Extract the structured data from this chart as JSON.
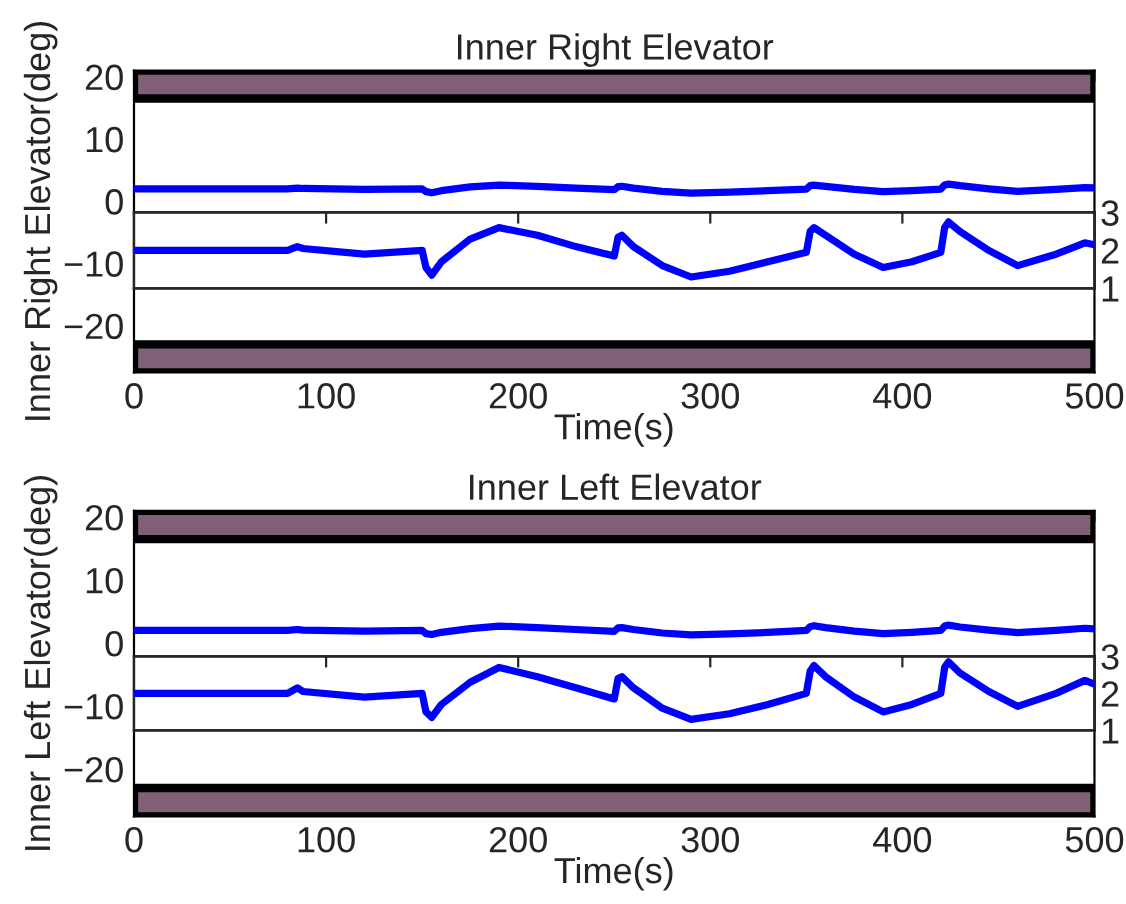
{
  "chart_data": [
    {
      "type": "line",
      "title": "Inner Right Elevator",
      "xlabel": "Time(s)",
      "ylabel": "Inner Right Elevator(deg)",
      "xlim": [
        0,
        500
      ],
      "xticks": [
        0,
        100,
        200,
        300,
        400,
        500
      ],
      "ylim": [
        -27.5,
        21
      ],
      "yticks": [
        -20,
        -10,
        0,
        10,
        20
      ],
      "x": [
        0,
        80,
        85,
        88,
        120,
        150,
        152,
        155,
        160,
        175,
        190,
        210,
        230,
        250,
        252,
        254,
        260,
        275,
        290,
        310,
        330,
        350,
        352,
        354,
        360,
        375,
        390,
        405,
        420,
        422,
        424,
        430,
        445,
        460,
        480,
        495,
        500
      ],
      "series": [
        {
          "color": "#0000ff",
          "values": [
            2.0,
            2.0,
            2.1,
            2.05,
            1.9,
            2.0,
            1.55,
            1.35,
            1.7,
            2.3,
            2.6,
            2.4,
            2.1,
            1.85,
            2.35,
            2.4,
            2.1,
            1.6,
            1.3,
            1.45,
            1.7,
            1.95,
            2.5,
            2.6,
            2.4,
            1.9,
            1.55,
            1.7,
            1.95,
            2.6,
            2.75,
            2.5,
            2.0,
            1.6,
            1.9,
            2.2,
            2.15
          ]
        }
      ],
      "bands": [
        {
          "axis": "y",
          "from": 16.5,
          "to": 21,
          "color": "#806078"
        },
        {
          "axis": "y",
          "from": -27.5,
          "to": -23,
          "color": "#806078"
        }
      ]
    },
    {
      "type": "line",
      "xlim": [
        0,
        500
      ],
      "xticks": [
        100,
        200,
        300,
        400
      ],
      "y2lim": [
        1,
        3
      ],
      "y2ticks": [
        1,
        2,
        3
      ],
      "tick_labels": "y",
      "x": [
        0,
        80,
        85,
        88,
        120,
        150,
        152,
        155,
        160,
        175,
        190,
        210,
        230,
        250,
        252,
        254,
        260,
        275,
        290,
        310,
        330,
        350,
        352,
        354,
        360,
        375,
        390,
        405,
        420,
        422,
        424,
        430,
        445,
        460,
        480,
        495,
        500
      ],
      "series": [
        {
          "color": "#0000ff",
          "axis": "y2",
          "values": [
            2.0,
            2.0,
            2.1,
            2.05,
            1.9,
            2.0,
            1.55,
            1.35,
            1.7,
            2.3,
            2.6,
            2.4,
            2.1,
            1.85,
            2.35,
            2.4,
            2.1,
            1.6,
            1.3,
            1.45,
            1.7,
            1.95,
            2.5,
            2.6,
            2.4,
            1.9,
            1.55,
            1.7,
            1.95,
            2.6,
            2.75,
            2.5,
            2.0,
            1.6,
            1.9,
            2.2,
            2.15
          ]
        }
      ]
    },
    {
      "type": "line",
      "title": "Inner Left Elevator",
      "xlabel": "Time(s)",
      "ylabel": "Inner Left Elevator(deg)",
      "xlim": [
        0,
        500
      ],
      "xticks": [
        0,
        100,
        200,
        300,
        400,
        500
      ],
      "ylim": [
        -27.5,
        21
      ],
      "yticks": [
        -20,
        -10,
        0,
        10,
        20
      ],
      "x": [
        0,
        80,
        85,
        88,
        120,
        150,
        152,
        155,
        160,
        175,
        190,
        210,
        230,
        250,
        252,
        254,
        260,
        275,
        290,
        310,
        330,
        350,
        352,
        354,
        360,
        375,
        390,
        405,
        420,
        422,
        424,
        430,
        445,
        460,
        480,
        495,
        500
      ],
      "series": [
        {
          "color": "#0000ff",
          "values": [
            2.0,
            2.0,
            2.15,
            2.05,
            1.9,
            2.0,
            1.5,
            1.35,
            1.7,
            2.3,
            2.7,
            2.45,
            2.15,
            1.85,
            2.4,
            2.45,
            2.15,
            1.6,
            1.3,
            1.45,
            1.7,
            2.0,
            2.6,
            2.75,
            2.45,
            1.9,
            1.5,
            1.7,
            2.0,
            2.7,
            2.85,
            2.55,
            2.05,
            1.65,
            2.0,
            2.35,
            2.25
          ]
        }
      ],
      "bands": [
        {
          "axis": "y",
          "from": 16.5,
          "to": 21,
          "color": "#806078"
        },
        {
          "axis": "y",
          "from": -27.5,
          "to": -23,
          "color": "#806078"
        }
      ]
    },
    {
      "type": "line",
      "xlim": [
        0,
        500
      ],
      "xticks": [
        100,
        200,
        300,
        400
      ],
      "y2lim": [
        1,
        3
      ],
      "y2ticks": [
        1,
        2,
        3
      ],
      "tick_labels": "y",
      "x": [
        0,
        80,
        85,
        88,
        120,
        150,
        152,
        155,
        160,
        175,
        190,
        210,
        230,
        250,
        252,
        254,
        260,
        275,
        290,
        310,
        330,
        350,
        352,
        354,
        360,
        375,
        390,
        405,
        420,
        422,
        424,
        430,
        445,
        460,
        480,
        495,
        500
      ],
      "series": [
        {
          "color": "#0000ff",
          "axis": "y2",
          "values": [
            2.0,
            2.0,
            2.15,
            2.05,
            1.9,
            2.0,
            1.5,
            1.35,
            1.7,
            2.3,
            2.7,
            2.45,
            2.15,
            1.85,
            2.4,
            2.45,
            2.15,
            1.6,
            1.3,
            1.45,
            1.7,
            2.0,
            2.6,
            2.75,
            2.45,
            1.9,
            1.5,
            1.7,
            2.0,
            2.7,
            2.85,
            2.55,
            2.05,
            1.65,
            2.0,
            2.35,
            2.25
          ]
        }
      ]
    }
  ]
}
